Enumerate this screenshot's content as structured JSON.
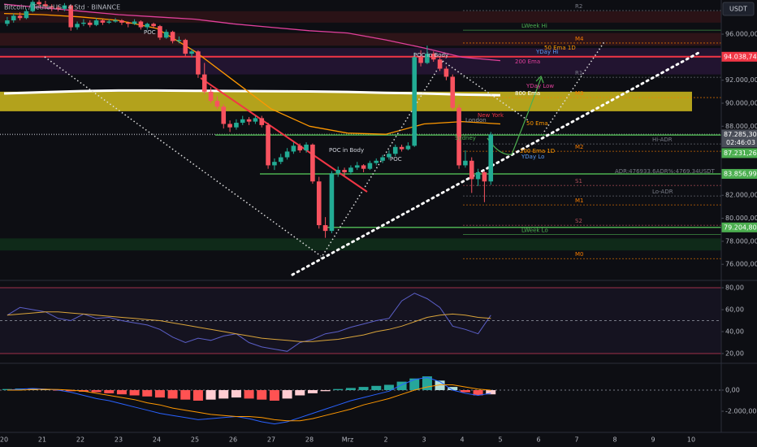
{
  "chart_data": [
    {
      "type": "candlestick",
      "title": "Bitcoin / TetherUS · 4 Std · BINANCE",
      "unit": "USDT",
      "ylim": [
        74600,
        98970
      ],
      "yticks": [
        {
          "value": 96000,
          "label": "96.000,00"
        },
        {
          "value": 92000,
          "label": "92.000,00"
        },
        {
          "value": 90000,
          "label": "90.000,00"
        },
        {
          "value": 88000,
          "label": "88.000,00"
        },
        {
          "value": 82000,
          "label": "82.000,00"
        },
        {
          "value": 80000,
          "label": "80.000,00"
        },
        {
          "value": 78000,
          "label": "78.000,00"
        },
        {
          "value": 76000,
          "label": "76.000,00"
        }
      ],
      "xticks": [
        "20",
        "21",
        "22",
        "23",
        "24",
        "25",
        "26",
        "27",
        "28",
        "Mrz",
        "2",
        "3",
        "4",
        "5",
        "6",
        "7",
        "8",
        "9",
        "10"
      ],
      "colors": {
        "up": "#22ab94",
        "down": "#f7525f"
      },
      "zones": [
        {
          "from": 97000,
          "to": 98000,
          "color": "#2a1216"
        },
        {
          "from": 95000,
          "to": 96100,
          "color": "#2e1418"
        },
        {
          "from": 92500,
          "to": 94800,
          "color": "#221430"
        },
        {
          "from": 89300,
          "to": 91000,
          "color": "#b3a21c"
        },
        {
          "from": 77200,
          "to": 78250,
          "color": "#0f2a19"
        }
      ],
      "levels": [
        {
          "name": "R2",
          "value": 98050,
          "color": "#787b86"
        },
        {
          "name": "LWeek Hi",
          "value": 96350,
          "color": "#4caf50"
        },
        {
          "name": "M4",
          "value": 95230,
          "color": "#f57c00"
        },
        {
          "name": "R1",
          "value": 92250,
          "color": "#787b86"
        },
        {
          "name": "M3",
          "value": 90490,
          "color": "#f57c00"
        },
        {
          "name": "Hi-ADR",
          "value": 86460,
          "color": "#787b86"
        },
        {
          "name": "M2",
          "value": 85820,
          "color": "#f57c00"
        },
        {
          "name": "S1",
          "value": 82850,
          "color": "#b2505a"
        },
        {
          "name": "Lo-ADR",
          "value": 81940,
          "color": "#787b86"
        },
        {
          "name": "M1",
          "value": 81160,
          "color": "#f57c00"
        },
        {
          "name": "S2",
          "value": 79390,
          "color": "#b2505a"
        },
        {
          "name": "LWeek Lo",
          "value": 78600,
          "color": "#4caf50"
        },
        {
          "name": "M0",
          "value": 76490,
          "color": "#f57c00"
        }
      ],
      "series": [
        {
          "name": "800 Ema",
          "color": "#ffffff",
          "values": [
            90850,
            90950,
            91050,
            91100,
            91100,
            91080,
            91060,
            91040,
            91020,
            90980,
            90900,
            90850,
            90750,
            90700
          ]
        },
        {
          "name": "200 Ema",
          "color": "#e0409b",
          "values": [
            98600,
            98300,
            98000,
            97700,
            97500,
            97300,
            96900,
            96600,
            96300,
            96100,
            95500,
            94800,
            94000,
            93700
          ]
        },
        {
          "name": "50 Ema",
          "color": "#ff9800",
          "values": [
            97800,
            97700,
            97500,
            97200,
            96500,
            94500,
            92000,
            89500,
            88000,
            87400,
            87300,
            88200,
            88400,
            88200
          ]
        }
      ],
      "tags": [
        {
          "value": 94038.74,
          "label": "94.038,74",
          "color": "#f23645"
        },
        {
          "value": 87285.3,
          "label": "87.285,30",
          "countdown": "02:46:03",
          "color": "#4a4e59"
        },
        {
          "value": 87231.26,
          "label": "87.231,26",
          "color": "#4caf50"
        },
        {
          "value": 83856.99,
          "label": "83.856,99",
          "color": "#4caf50"
        },
        {
          "value": 79204.8,
          "label": "79.204,80",
          "color": "#4caf50"
        }
      ],
      "annotations": [
        "POC",
        "POC in Body",
        "50 Ema 1D",
        "YDay Hi",
        "YDay Low",
        "New York",
        "London",
        "Sydney",
        "200 Ema 1D",
        "YDay Lo",
        "POC in Body",
        "POC",
        "ADR:476933.6ADR%:4769.34USDT"
      ],
      "ohlc": [
        [
          96900,
          97500,
          96700,
          97200
        ],
        [
          97200,
          97800,
          97000,
          97600
        ],
        [
          97600,
          97900,
          97200,
          97400
        ],
        [
          97400,
          98200,
          97300,
          98000
        ],
        [
          98000,
          98950,
          97900,
          98800
        ],
        [
          98800,
          99000,
          98400,
          98600
        ],
        [
          98600,
          98900,
          98200,
          98400
        ],
        [
          98400,
          98600,
          98000,
          98300
        ],
        [
          98300,
          98500,
          98000,
          98200
        ],
        [
          98200,
          98700,
          98000,
          98500
        ],
        [
          98500,
          98600,
          96300,
          96600
        ],
        [
          96600,
          97100,
          96400,
          96900
        ],
        [
          96900,
          97300,
          96700,
          97000
        ],
        [
          97000,
          97200,
          96600,
          96800
        ],
        [
          96800,
          97400,
          96700,
          97200
        ],
        [
          97200,
          97300,
          96800,
          97000
        ],
        [
          97000,
          97300,
          96900,
          97100
        ],
        [
          97100,
          97400,
          97000,
          97200
        ],
        [
          97200,
          97300,
          96800,
          97000
        ],
        [
          97000,
          97100,
          96600,
          96900
        ],
        [
          96900,
          97300,
          96800,
          97100
        ],
        [
          97100,
          97200,
          96400,
          96600
        ],
        [
          96600,
          97000,
          96400,
          96900
        ],
        [
          96900,
          97000,
          96500,
          96700
        ],
        [
          96700,
          96800,
          95500,
          95700
        ],
        [
          95700,
          96400,
          95600,
          96200
        ],
        [
          96200,
          96300,
          95200,
          95400
        ],
        [
          95400,
          95800,
          95200,
          95500
        ],
        [
          95500,
          95600,
          94100,
          94300
        ],
        [
          94300,
          94700,
          94000,
          94500
        ],
        [
          94500,
          94600,
          92200,
          92500
        ],
        [
          92500,
          93500,
          90800,
          91000
        ],
        [
          91000,
          91400,
          90000,
          90200
        ],
        [
          90200,
          90600,
          89500,
          89700
        ],
        [
          89700,
          89900,
          87800,
          88200
        ],
        [
          88200,
          88500,
          87500,
          87900
        ],
        [
          87900,
          88600,
          87700,
          88300
        ],
        [
          88300,
          88900,
          88100,
          88600
        ],
        [
          88600,
          88800,
          88100,
          88400
        ],
        [
          88400,
          88900,
          88200,
          88700
        ],
        [
          88700,
          88900,
          87900,
          88100
        ],
        [
          88100,
          88300,
          84300,
          84600
        ],
        [
          84600,
          85200,
          84200,
          84900
        ],
        [
          84900,
          85600,
          84700,
          85300
        ],
        [
          85300,
          86100,
          85100,
          85800
        ],
        [
          85800,
          86600,
          85600,
          86300
        ],
        [
          86300,
          86500,
          85700,
          85900
        ],
        [
          85900,
          86600,
          85700,
          86400
        ],
        [
          86400,
          86500,
          83000,
          83200
        ],
        [
          83200,
          83600,
          79100,
          79400
        ],
        [
          79400,
          80100,
          78300,
          78900
        ],
        [
          78900,
          84100,
          78700,
          83900
        ],
        [
          83900,
          84500,
          83600,
          84200
        ],
        [
          84200,
          84400,
          83700,
          84000
        ],
        [
          84000,
          84600,
          83800,
          84400
        ],
        [
          84400,
          84900,
          84200,
          84600
        ],
        [
          84600,
          84700,
          84000,
          84300
        ],
        [
          84300,
          85000,
          84200,
          84800
        ],
        [
          84800,
          85200,
          84600,
          85000
        ],
        [
          85000,
          85500,
          84800,
          85300
        ],
        [
          85300,
          85900,
          85100,
          85600
        ],
        [
          85600,
          86400,
          85400,
          86200
        ],
        [
          86200,
          86400,
          85800,
          86000
        ],
        [
          86000,
          86600,
          85900,
          86300
        ],
        [
          86300,
          94400,
          86200,
          94000
        ],
        [
          94000,
          94600,
          93200,
          93500
        ],
        [
          93500,
          95000,
          93400,
          94300
        ],
        [
          94300,
          94500,
          93600,
          93800
        ],
        [
          93800,
          94000,
          92800,
          93000
        ],
        [
          93000,
          93200,
          92000,
          92300
        ],
        [
          92300,
          92500,
          89400,
          89600
        ],
        [
          89600,
          89900,
          84300,
          84600
        ],
        [
          84600,
          85900,
          84400,
          85000
        ],
        [
          85000,
          85300,
          82200,
          83400
        ],
        [
          83400,
          84300,
          82800,
          84000
        ],
        [
          84000,
          84100,
          81400,
          83200
        ],
        [
          83200,
          87500,
          82900,
          87285.3
        ]
      ]
    },
    {
      "type": "line",
      "ylim": [
        12.6,
        86.7
      ],
      "yticks": [
        {
          "value": 80,
          "label": "80,00"
        },
        {
          "value": 60,
          "label": "60,00"
        },
        {
          "value": 40,
          "label": "40,00"
        },
        {
          "value": 20,
          "label": "20,00"
        }
      ],
      "hlines": [
        80,
        50,
        20
      ],
      "series": [
        {
          "color": "#5b5fc7",
          "values": [
            55,
            62,
            60,
            58,
            52,
            50,
            56,
            52,
            53,
            50,
            48,
            46,
            42,
            35,
            30,
            34,
            32,
            36,
            38,
            30,
            26,
            24,
            22,
            30,
            33,
            38,
            40,
            44,
            47,
            50,
            52,
            68,
            75,
            70,
            62,
            45,
            42,
            38,
            55
          ]
        },
        {
          "color": "#d9a43a",
          "values": [
            55,
            56,
            57,
            58,
            58,
            57,
            56,
            55,
            54,
            53,
            52,
            51,
            50,
            48,
            46,
            44,
            42,
            40,
            38,
            36,
            34,
            33,
            32,
            31,
            31,
            32,
            33,
            35,
            37,
            40,
            42,
            45,
            49,
            53,
            55,
            56,
            55,
            53,
            52
          ]
        }
      ]
    },
    {
      "type": "bar",
      "ylim": [
        -4000,
        2538
      ],
      "yticks": [
        {
          "value": 0,
          "label": "0,00"
        },
        {
          "value": -2000,
          "label": "-2.000,00"
        }
      ],
      "values": [
        100,
        150,
        120,
        50,
        -50,
        -100,
        -150,
        -200,
        -300,
        -400,
        -500,
        -600,
        -700,
        -800,
        -900,
        -1000,
        -900,
        -800,
        -700,
        -800,
        -900,
        -1000,
        -800,
        -500,
        -300,
        -100,
        100,
        200,
        300,
        400,
        500,
        800,
        1100,
        1300,
        900,
        300,
        -200,
        -500,
        -400
      ],
      "series": [
        {
          "color": "#2962ff",
          "values": [
            0,
            100,
            150,
            100,
            0,
            -200,
            -500,
            -800,
            -1000,
            -1300,
            -1600,
            -1900,
            -2200,
            -2400,
            -2600,
            -2800,
            -2700,
            -2600,
            -2500,
            -2700,
            -3000,
            -3200,
            -3000,
            -2600,
            -2200,
            -1800,
            -1400,
            -1000,
            -700,
            -400,
            -100,
            500,
            1000,
            1200,
            800,
            0,
            -300,
            -500,
            -300
          ]
        },
        {
          "color": "#ff9800",
          "values": [
            0,
            0,
            50,
            80,
            60,
            0,
            -100,
            -300,
            -500,
            -700,
            -900,
            -1200,
            -1400,
            -1700,
            -1900,
            -2100,
            -2300,
            -2400,
            -2500,
            -2500,
            -2600,
            -2800,
            -2900,
            -2900,
            -2700,
            -2400,
            -2100,
            -1800,
            -1400,
            -1100,
            -800,
            -400,
            0,
            300,
            500,
            500,
            300,
            100,
            0
          ]
        }
      ]
    }
  ]
}
